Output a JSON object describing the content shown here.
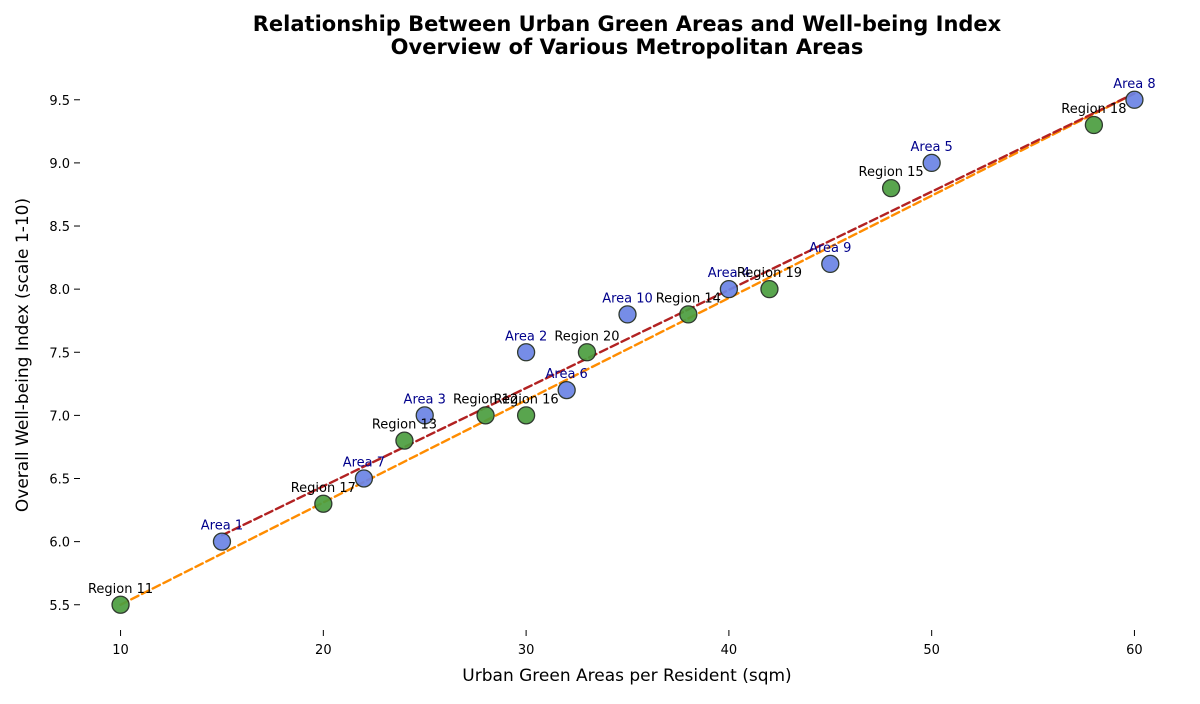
{
  "chart_data": {
    "type": "scatter",
    "title_line1": "Relationship Between Urban Green Areas and Well-being Index",
    "title_line2": "Overview of Various Metropolitan Areas",
    "xlabel": "Urban Green Areas per Resident (sqm)",
    "ylabel": "Overall Well-being Index (scale 1-10)",
    "xlim": [
      8,
      62
    ],
    "ylim": [
      5.3,
      9.72
    ],
    "xticks": [
      10,
      20,
      30,
      40,
      50,
      60
    ],
    "yticks": [
      5.5,
      6.0,
      6.5,
      7.0,
      7.5,
      8.0,
      8.5,
      9.0,
      9.5
    ],
    "grid": false,
    "series": [
      {
        "color": "#6b84e6",
        "label_color": "#00008b",
        "points": [
          {
            "label": "Area 1",
            "x": 15,
            "y": 6.0
          },
          {
            "label": "Area 2",
            "x": 30,
            "y": 7.5
          },
          {
            "label": "Area 3",
            "x": 25,
            "y": 7.0
          },
          {
            "label": "Area 4",
            "x": 40,
            "y": 8.0
          },
          {
            "label": "Area 5",
            "x": 50,
            "y": 9.0
          },
          {
            "label": "Area 6",
            "x": 32,
            "y": 7.2
          },
          {
            "label": "Area 7",
            "x": 22,
            "y": 6.5
          },
          {
            "label": "Area 8",
            "x": 60,
            "y": 9.5
          },
          {
            "label": "Area 9",
            "x": 45,
            "y": 8.2
          },
          {
            "label": "Area 10",
            "x": 35,
            "y": 7.8
          }
        ],
        "trend": {
          "color": "#b22222",
          "x_range": [
            15,
            60
          ],
          "y_range": [
            6.05,
            9.55
          ]
        }
      },
      {
        "color": "#4c9e3f",
        "label_color": "#000000",
        "points": [
          {
            "label": "Region 11",
            "x": 10,
            "y": 5.5
          },
          {
            "label": "Region 12",
            "x": 28,
            "y": 7.0
          },
          {
            "label": "Region 13",
            "x": 24,
            "y": 6.8
          },
          {
            "label": "Region 14",
            "x": 38,
            "y": 7.8
          },
          {
            "label": "Region 15",
            "x": 48,
            "y": 8.8
          },
          {
            "label": "Region 16",
            "x": 30,
            "y": 7.0
          },
          {
            "label": "Region 17",
            "x": 20,
            "y": 6.3
          },
          {
            "label": "Region 18",
            "x": 58,
            "y": 9.3
          },
          {
            "label": "Region 19",
            "x": 42,
            "y": 8.0
          },
          {
            "label": "Region 20",
            "x": 33,
            "y": 7.5
          }
        ],
        "trend": {
          "color": "#ff8c00",
          "x_range": [
            10,
            60
          ],
          "y_range": [
            5.5,
            9.55
          ]
        }
      }
    ]
  }
}
